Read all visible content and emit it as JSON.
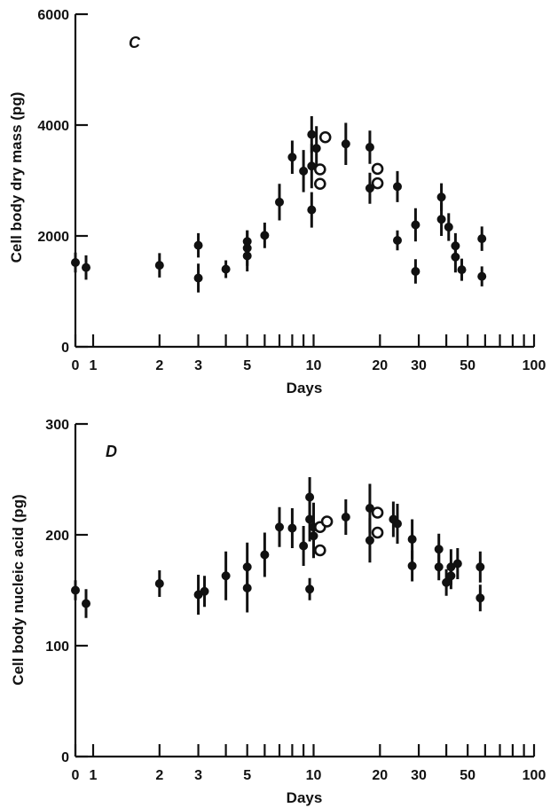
{
  "chart_data": [
    {
      "type": "scatter",
      "panel_label": "C",
      "xlabel": "Days",
      "ylabel": "Cell body dry mass (pg)",
      "x_scale": "log",
      "x_tick_labels": [
        "0",
        "1",
        "2",
        "3",
        "5",
        "10",
        "20",
        "30",
        "50",
        "100"
      ],
      "y_tick_labels": [
        "0",
        "2000",
        "4000",
        "6000"
      ],
      "ylim": [
        0,
        6000
      ],
      "grid": false,
      "series": [
        {
          "marker": "filled",
          "points": [
            {
              "x": 0,
              "y": 1520,
              "err": 180
            },
            {
              "x": 0.6,
              "y": 1430,
              "err": 220
            },
            {
              "x": 2,
              "y": 1470,
              "err": 220
            },
            {
              "x": 3,
              "y": 1830,
              "err": 220
            },
            {
              "x": 3,
              "y": 1240,
              "err": 260
            },
            {
              "x": 4,
              "y": 1400,
              "err": 160
            },
            {
              "x": 5,
              "y": 1900,
              "err": 200
            },
            {
              "x": 5,
              "y": 1780,
              "err": 320
            },
            {
              "x": 5,
              "y": 1640,
              "err": 280
            },
            {
              "x": 6,
              "y": 2010,
              "err": 230
            },
            {
              "x": 7,
              "y": 2610,
              "err": 330
            },
            {
              "x": 8,
              "y": 3420,
              "err": 300
            },
            {
              "x": 9,
              "y": 3170,
              "err": 380
            },
            {
              "x": 9.8,
              "y": 3830,
              "err": 330
            },
            {
              "x": 9.8,
              "y": 3260,
              "err": 400
            },
            {
              "x": 9.8,
              "y": 2470,
              "err": 320
            },
            {
              "x": 10.3,
              "y": 3580,
              "err": 400
            },
            {
              "x": 14,
              "y": 3660,
              "err": 380
            },
            {
              "x": 18,
              "y": 3600,
              "err": 300
            },
            {
              "x": 18,
              "y": 2860,
              "err": 280
            },
            {
              "x": 24,
              "y": 2890,
              "err": 280
            },
            {
              "x": 24,
              "y": 1920,
              "err": 180
            },
            {
              "x": 29,
              "y": 2200,
              "err": 300
            },
            {
              "x": 29,
              "y": 1360,
              "err": 220
            },
            {
              "x": 38,
              "y": 2700,
              "err": 250
            },
            {
              "x": 38,
              "y": 2300,
              "err": 300
            },
            {
              "x": 41,
              "y": 2160,
              "err": 250
            },
            {
              "x": 44,
              "y": 1820,
              "err": 230
            },
            {
              "x": 44,
              "y": 1620,
              "err": 280
            },
            {
              "x": 47,
              "y": 1390,
              "err": 200
            },
            {
              "x": 58,
              "y": 1950,
              "err": 220
            },
            {
              "x": 58,
              "y": 1270,
              "err": 180
            }
          ]
        },
        {
          "marker": "open",
          "points": [
            {
              "x": 10.7,
              "y": 3200,
              "err": 0
            },
            {
              "x": 10.7,
              "y": 2940,
              "err": 0
            },
            {
              "x": 11.3,
              "y": 3780,
              "err": 0
            },
            {
              "x": 19.5,
              "y": 3210,
              "err": 0
            },
            {
              "x": 19.5,
              "y": 2950,
              "err": 0
            }
          ]
        }
      ]
    },
    {
      "type": "scatter",
      "panel_label": "D",
      "xlabel": "Days",
      "ylabel": "Cell body nucleic acid (pg)",
      "x_scale": "log",
      "x_tick_labels": [
        "0",
        "1",
        "2",
        "3",
        "5",
        "10",
        "20",
        "30",
        "50",
        "100"
      ],
      "y_tick_labels": [
        "0",
        "100",
        "200",
        "300"
      ],
      "ylim": [
        0,
        300
      ],
      "grid": false,
      "series": [
        {
          "marker": "filled",
          "points": [
            {
              "x": 0,
              "y": 150,
              "err": 9
            },
            {
              "x": 0.6,
              "y": 138,
              "err": 13
            },
            {
              "x": 2,
              "y": 156,
              "err": 12
            },
            {
              "x": 3,
              "y": 146,
              "err": 18
            },
            {
              "x": 3.2,
              "y": 149,
              "err": 14
            },
            {
              "x": 4,
              "y": 163,
              "err": 22
            },
            {
              "x": 5,
              "y": 171,
              "err": 22
            },
            {
              "x": 5,
              "y": 152,
              "err": 22
            },
            {
              "x": 6,
              "y": 182,
              "err": 20
            },
            {
              "x": 7,
              "y": 207,
              "err": 18
            },
            {
              "x": 8,
              "y": 206,
              "err": 18
            },
            {
              "x": 9,
              "y": 190,
              "err": 18
            },
            {
              "x": 9.6,
              "y": 234,
              "err": 18
            },
            {
              "x": 9.6,
              "y": 214,
              "err": 20
            },
            {
              "x": 9.6,
              "y": 151,
              "err": 10
            },
            {
              "x": 10,
              "y": 207,
              "err": 22
            },
            {
              "x": 10,
              "y": 199,
              "err": 20
            },
            {
              "x": 14,
              "y": 216,
              "err": 16
            },
            {
              "x": 18,
              "y": 224,
              "err": 22
            },
            {
              "x": 18,
              "y": 195,
              "err": 20
            },
            {
              "x": 23,
              "y": 214,
              "err": 16
            },
            {
              "x": 24,
              "y": 210,
              "err": 18
            },
            {
              "x": 28,
              "y": 196,
              "err": 18
            },
            {
              "x": 28,
              "y": 172,
              "err": 14
            },
            {
              "x": 37,
              "y": 187,
              "err": 14
            },
            {
              "x": 37,
              "y": 171,
              "err": 12
            },
            {
              "x": 40,
              "y": 157,
              "err": 12
            },
            {
              "x": 42,
              "y": 171,
              "err": 16
            },
            {
              "x": 42,
              "y": 163,
              "err": 12
            },
            {
              "x": 45,
              "y": 174,
              "err": 14
            },
            {
              "x": 57,
              "y": 171,
              "err": 14
            },
            {
              "x": 57,
              "y": 143,
              "err": 12
            }
          ]
        },
        {
          "marker": "open",
          "points": [
            {
              "x": 10.7,
              "y": 207,
              "err": 0
            },
            {
              "x": 10.7,
              "y": 186,
              "err": 0
            },
            {
              "x": 11.5,
              "y": 212,
              "err": 0
            },
            {
              "x": 19.5,
              "y": 220,
              "err": 0
            },
            {
              "x": 19.5,
              "y": 202,
              "err": 0
            }
          ]
        }
      ]
    }
  ]
}
